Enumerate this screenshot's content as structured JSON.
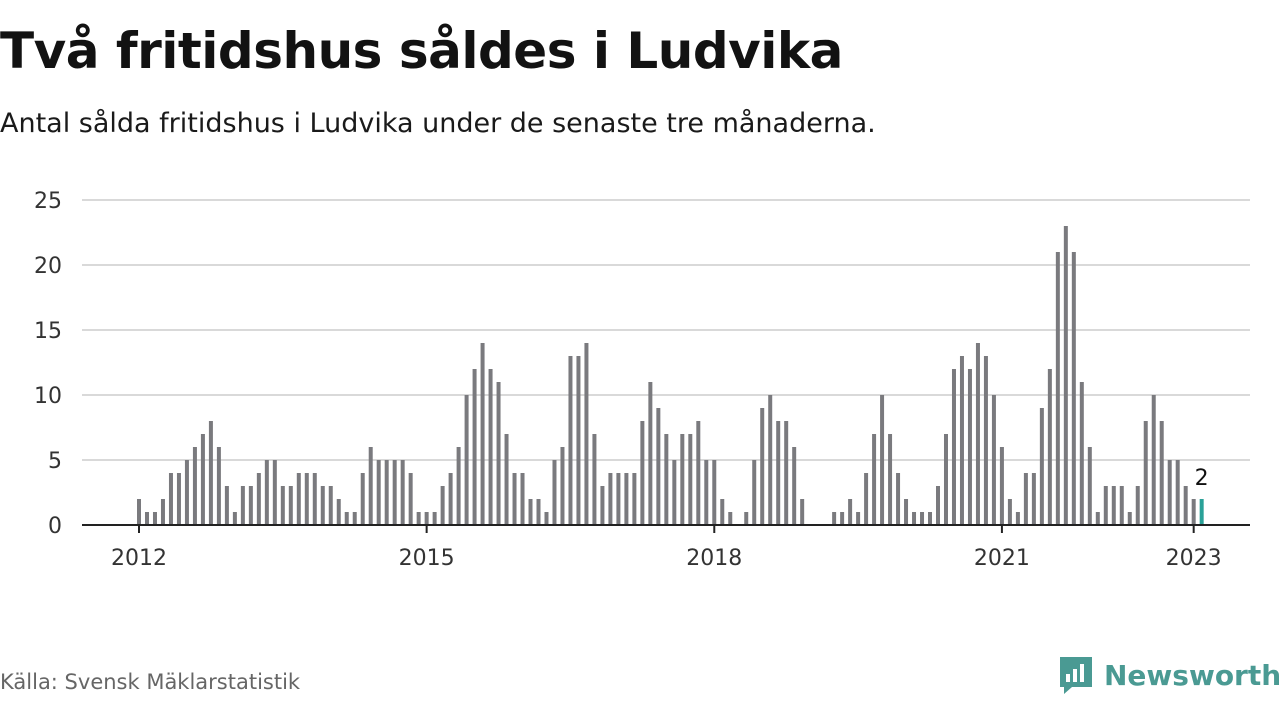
{
  "header": {
    "title": "Två fritidshus såldes i Ludvika",
    "subtitle": "Antal sålda fritidshus i Ludvika under de senaste tre månaderna."
  },
  "footer": {
    "source": "Källa: Svensk Mäklarstatistik",
    "brand": "Newsworthy",
    "brand_icon": "newsworthy-logo-icon"
  },
  "colors": {
    "bar": "#7a7a7e",
    "highlight": "#2aa198",
    "grid": "#d9d9d9",
    "axis": "#222222",
    "brand": "#4a9a93"
  },
  "chart_data": {
    "type": "bar",
    "x_axis_tick_labels": [
      "2012",
      "2015",
      "2018",
      "2021",
      "2023"
    ],
    "y_ticks": [
      0,
      5,
      10,
      15,
      20,
      25
    ],
    "ylim": [
      0,
      25
    ],
    "grid": true,
    "highlight_label": "2",
    "x_start": "2012-01",
    "values": [
      2,
      1,
      1,
      2,
      4,
      4,
      5,
      6,
      7,
      8,
      6,
      3,
      1,
      3,
      3,
      4,
      5,
      5,
      3,
      3,
      4,
      4,
      4,
      3,
      3,
      2,
      1,
      1,
      4,
      6,
      5,
      5,
      5,
      5,
      4,
      1,
      1,
      1,
      3,
      4,
      6,
      10,
      12,
      14,
      12,
      11,
      7,
      4,
      4,
      2,
      2,
      1,
      5,
      6,
      13,
      13,
      14,
      7,
      3,
      4,
      4,
      4,
      4,
      8,
      11,
      9,
      7,
      5,
      7,
      7,
      8,
      5,
      5,
      2,
      1,
      0,
      1,
      5,
      9,
      10,
      8,
      8,
      6,
      2,
      0,
      0,
      0,
      1,
      1,
      2,
      1,
      4,
      7,
      10,
      7,
      4,
      2,
      1,
      1,
      1,
      3,
      7,
      12,
      13,
      12,
      14,
      13,
      10,
      6,
      2,
      1,
      4,
      4,
      9,
      12,
      21,
      23,
      21,
      11,
      6,
      1,
      3,
      3,
      3,
      1,
      3,
      8,
      10,
      8,
      5,
      5,
      3,
      2,
      2
    ],
    "highlight_index": 133
  }
}
